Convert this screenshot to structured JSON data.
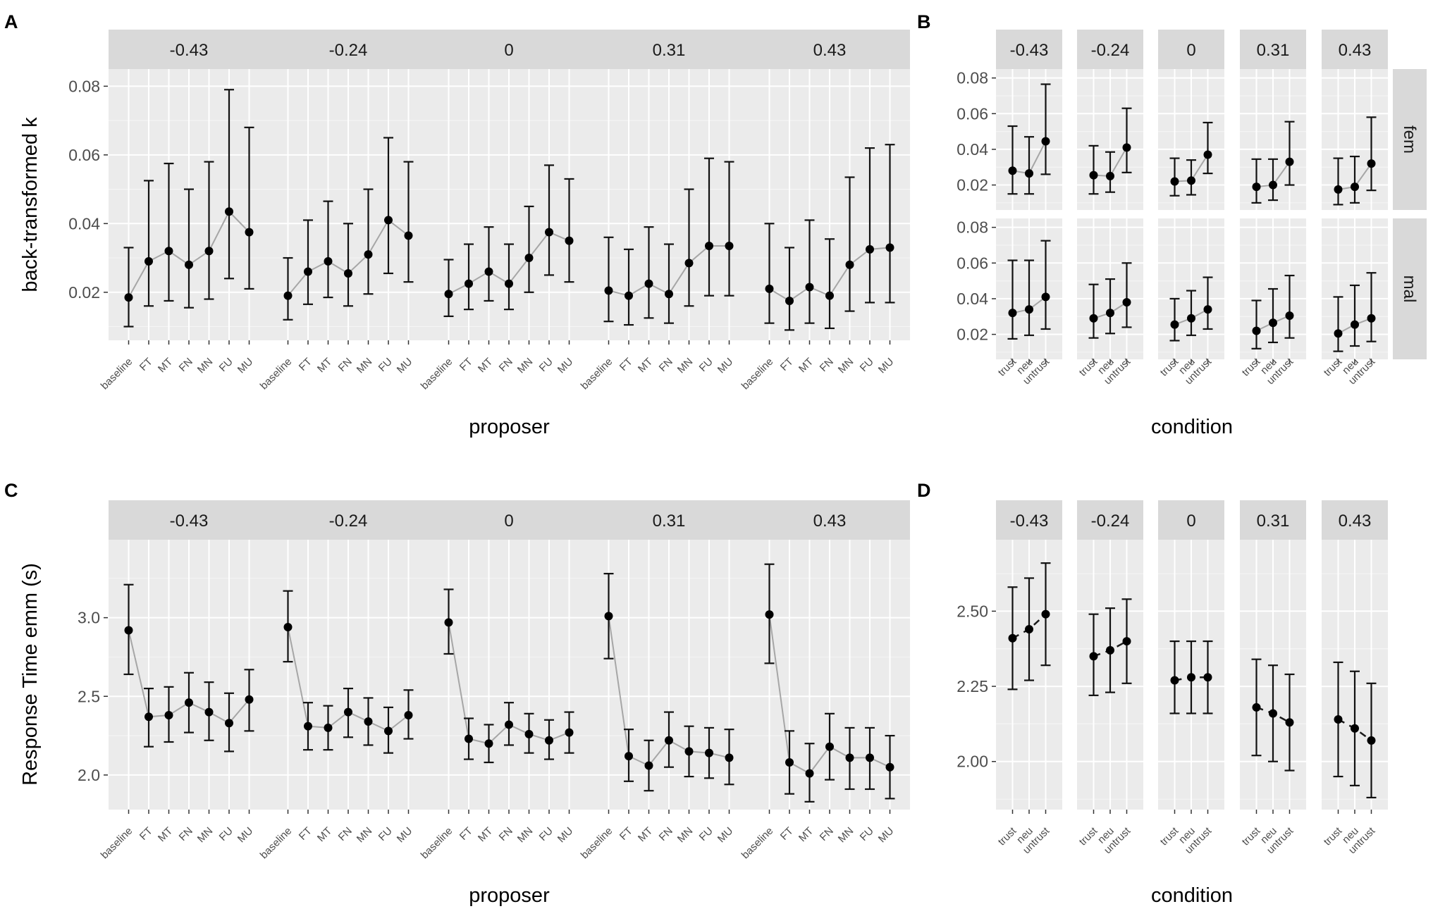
{
  "panels": [
    {
      "id": "A",
      "letter": "A",
      "type": "line",
      "facet_labels": [
        "-0.43",
        "-0.24",
        "0",
        "0.31",
        "0.43"
      ],
      "categories": [
        "baseline",
        "FT",
        "MT",
        "FN",
        "MN",
        "FU",
        "MU"
      ],
      "xlabel": "proposer",
      "ylabel": "back-transformed k",
      "ylim": [
        0.006,
        0.085
      ],
      "yticks": [
        0.02,
        0.04,
        0.06,
        0.08
      ],
      "ytick_labels": [
        "0.02",
        "0.04",
        "0.06",
        "0.08"
      ],
      "line_style": "solid-grey",
      "facets": [
        {
          "values": [
            0.0185,
            0.029,
            0.032,
            0.028,
            0.032,
            0.0435,
            0.0375
          ],
          "lower": [
            0.01,
            0.016,
            0.0175,
            0.0155,
            0.018,
            0.024,
            0.021
          ],
          "upper": [
            0.033,
            0.0525,
            0.0575,
            0.05,
            0.058,
            0.079,
            0.068
          ]
        },
        {
          "values": [
            0.019,
            0.026,
            0.029,
            0.0255,
            0.031,
            0.041,
            0.0365
          ],
          "lower": [
            0.012,
            0.0165,
            0.0185,
            0.016,
            0.0195,
            0.0255,
            0.023
          ],
          "upper": [
            0.03,
            0.041,
            0.0465,
            0.04,
            0.05,
            0.065,
            0.058
          ]
        },
        {
          "values": [
            0.0195,
            0.0225,
            0.026,
            0.0225,
            0.03,
            0.0375,
            0.035
          ],
          "lower": [
            0.013,
            0.015,
            0.0175,
            0.015,
            0.02,
            0.025,
            0.023
          ],
          "upper": [
            0.0295,
            0.034,
            0.039,
            0.034,
            0.045,
            0.057,
            0.053
          ]
        },
        {
          "values": [
            0.0205,
            0.019,
            0.0225,
            0.0195,
            0.0285,
            0.0335,
            0.0335
          ],
          "lower": [
            0.0115,
            0.0105,
            0.0125,
            0.011,
            0.016,
            0.019,
            0.019
          ],
          "upper": [
            0.036,
            0.0325,
            0.039,
            0.034,
            0.05,
            0.059,
            0.058
          ]
        },
        {
          "values": [
            0.021,
            0.0175,
            0.0215,
            0.019,
            0.028,
            0.0325,
            0.033
          ],
          "lower": [
            0.011,
            0.009,
            0.011,
            0.0095,
            0.0145,
            0.017,
            0.017
          ],
          "upper": [
            0.04,
            0.033,
            0.041,
            0.0355,
            0.0535,
            0.062,
            0.063
          ]
        }
      ]
    },
    {
      "id": "B",
      "letter": "B",
      "type": "line",
      "facet_labels": [
        "-0.43",
        "-0.24",
        "0",
        "0.31",
        "0.43"
      ],
      "row_labels": [
        "fem",
        "mal"
      ],
      "categories": [
        "trust",
        "neu",
        "untrust"
      ],
      "xlabel": "condition",
      "ylabel": "",
      "ylim": [
        0.006,
        0.085
      ],
      "yticks": [
        0.02,
        0.04,
        0.06,
        0.08
      ],
      "ytick_labels": [
        "0.02",
        "0.04",
        "0.06",
        "0.08"
      ],
      "line_style": "solid-grey",
      "rows": [
        [
          {
            "values": [
              0.028,
              0.0265,
              0.0445
            ],
            "lower": [
              0.015,
              0.015,
              0.026
            ],
            "upper": [
              0.053,
              0.047,
              0.0765
            ]
          },
          {
            "values": [
              0.0255,
              0.025,
              0.041
            ],
            "lower": [
              0.015,
              0.016,
              0.027
            ],
            "upper": [
              0.042,
              0.0385,
              0.063
            ]
          },
          {
            "values": [
              0.022,
              0.0225,
              0.037
            ],
            "lower": [
              0.014,
              0.0145,
              0.0265
            ],
            "upper": [
              0.035,
              0.034,
              0.055
            ]
          },
          {
            "values": [
              0.019,
              0.02,
              0.033
            ],
            "lower": [
              0.01,
              0.0115,
              0.02
            ],
            "upper": [
              0.0345,
              0.0345,
              0.0555
            ]
          },
          {
            "values": [
              0.0175,
              0.019,
              0.032
            ],
            "lower": [
              0.009,
              0.01,
              0.017
            ],
            "upper": [
              0.035,
              0.036,
              0.058
            ]
          }
        ],
        [
          {
            "values": [
              0.032,
              0.034,
              0.041
            ],
            "lower": [
              0.0175,
              0.0195,
              0.023
            ],
            "upper": [
              0.0615,
              0.0615,
              0.0725
            ]
          },
          {
            "values": [
              0.029,
              0.032,
              0.038
            ],
            "lower": [
              0.018,
              0.0205,
              0.024
            ],
            "upper": [
              0.048,
              0.051,
              0.06
            ]
          },
          {
            "values": [
              0.0255,
              0.029,
              0.034
            ],
            "lower": [
              0.0165,
              0.0195,
              0.023
            ],
            "upper": [
              0.04,
              0.0445,
              0.052
            ]
          },
          {
            "values": [
              0.022,
              0.0265,
              0.0305
            ],
            "lower": [
              0.012,
              0.0155,
              0.018
            ],
            "upper": [
              0.039,
              0.0455,
              0.053
            ]
          },
          {
            "values": [
              0.0205,
              0.0255,
              0.029
            ],
            "lower": [
              0.0105,
              0.0135,
              0.016
            ],
            "upper": [
              0.041,
              0.0475,
              0.0545
            ]
          }
        ]
      ]
    },
    {
      "id": "C",
      "letter": "C",
      "type": "line",
      "facet_labels": [
        "-0.43",
        "-0.24",
        "0",
        "0.31",
        "0.43"
      ],
      "categories": [
        "baseline",
        "FT",
        "MT",
        "FN",
        "MN",
        "FU",
        "MU"
      ],
      "xlabel": "proposer",
      "ylabel": "Response Time emm (s)",
      "ylim": [
        1.78,
        3.5
      ],
      "yticks": [
        2.0,
        2.5,
        3.0
      ],
      "ytick_labels": [
        "2.0",
        "2.5",
        "3.0"
      ],
      "line_style": "solid-grey",
      "facets": [
        {
          "values": [
            2.92,
            2.37,
            2.38,
            2.46,
            2.4,
            2.33,
            2.48
          ],
          "lower": [
            2.64,
            2.18,
            2.21,
            2.27,
            2.22,
            2.15,
            2.28
          ],
          "upper": [
            3.21,
            2.55,
            2.56,
            2.65,
            2.59,
            2.52,
            2.67
          ]
        },
        {
          "values": [
            2.94,
            2.31,
            2.3,
            2.4,
            2.34,
            2.28,
            2.38
          ],
          "lower": [
            2.72,
            2.16,
            2.16,
            2.24,
            2.19,
            2.14,
            2.23
          ],
          "upper": [
            3.17,
            2.46,
            2.44,
            2.55,
            2.49,
            2.43,
            2.54
          ]
        },
        {
          "values": [
            2.97,
            2.23,
            2.2,
            2.32,
            2.26,
            2.22,
            2.27
          ],
          "lower": [
            2.77,
            2.1,
            2.08,
            2.19,
            2.14,
            2.1,
            2.14
          ],
          "upper": [
            3.18,
            2.36,
            2.32,
            2.46,
            2.39,
            2.35,
            2.4
          ]
        },
        {
          "values": [
            3.01,
            2.12,
            2.06,
            2.22,
            2.15,
            2.14,
            2.11
          ],
          "lower": [
            2.74,
            1.96,
            1.9,
            2.05,
            1.99,
            1.98,
            1.94
          ],
          "upper": [
            3.28,
            2.29,
            2.22,
            2.4,
            2.31,
            2.3,
            2.29
          ]
        },
        {
          "values": [
            3.02,
            2.08,
            2.01,
            2.18,
            2.11,
            2.11,
            2.05
          ],
          "lower": [
            2.71,
            1.88,
            1.83,
            1.97,
            1.91,
            1.91,
            1.85
          ],
          "upper": [
            3.34,
            2.28,
            2.2,
            2.39,
            2.3,
            2.3,
            2.25
          ]
        }
      ]
    },
    {
      "id": "D",
      "letter": "D",
      "type": "line",
      "facet_labels": [
        "-0.43",
        "-0.24",
        "0",
        "0.31",
        "0.43"
      ],
      "categories": [
        "trust",
        "neu",
        "untrust"
      ],
      "xlabel": "condition",
      "ylabel": "",
      "ylim": [
        1.84,
        2.74
      ],
      "yticks": [
        2.0,
        2.25,
        2.5
      ],
      "ytick_labels": [
        "2.00",
        "2.25",
        "2.50"
      ],
      "line_style": "dashed-black",
      "facets": [
        {
          "values": [
            2.41,
            2.44,
            2.49
          ],
          "lower": [
            2.24,
            2.27,
            2.32
          ],
          "upper": [
            2.58,
            2.61,
            2.66
          ]
        },
        {
          "values": [
            2.35,
            2.37,
            2.4
          ],
          "lower": [
            2.22,
            2.23,
            2.26
          ],
          "upper": [
            2.49,
            2.51,
            2.54
          ]
        },
        {
          "values": [
            2.27,
            2.28,
            2.28
          ],
          "lower": [
            2.16,
            2.16,
            2.16
          ],
          "upper": [
            2.4,
            2.4,
            2.4
          ]
        },
        {
          "values": [
            2.18,
            2.16,
            2.13
          ],
          "lower": [
            2.02,
            2.0,
            1.97
          ],
          "upper": [
            2.34,
            2.32,
            2.29
          ]
        },
        {
          "values": [
            2.14,
            2.11,
            2.07
          ],
          "lower": [
            1.95,
            1.92,
            1.88
          ],
          "upper": [
            2.33,
            2.3,
            2.26
          ]
        }
      ]
    }
  ]
}
